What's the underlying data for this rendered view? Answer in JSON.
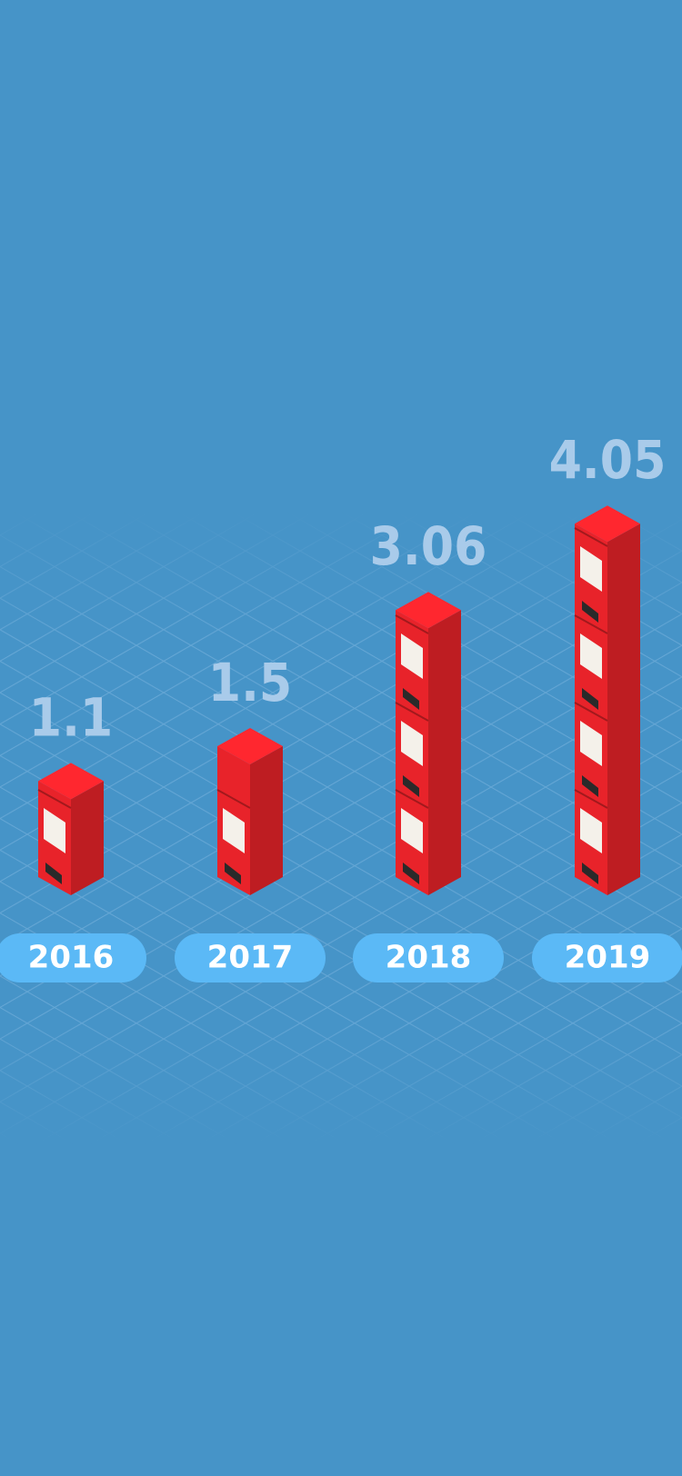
{
  "chart_data": {
    "type": "bar",
    "categories": [
      "2016",
      "2017",
      "2018",
      "2019"
    ],
    "values": [
      1.1,
      1.5,
      3.06,
      4.05
    ],
    "color": "#e8232a"
  }
}
